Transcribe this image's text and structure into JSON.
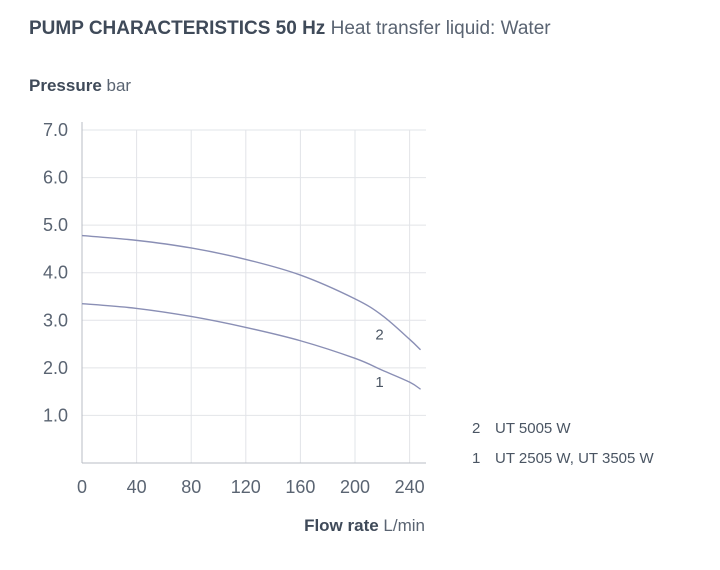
{
  "title": {
    "bold": "PUMP CHARACTERISTICS 50 Hz",
    "light": "Heat transfer liquid: Water"
  },
  "chart_data": {
    "type": "line",
    "ylabel_bold": "Pressure",
    "ylabel_unit": "bar",
    "xlabel_bold": "Flow rate",
    "xlabel_unit": "L/min",
    "xlim": [
      0,
      252
    ],
    "ylim": [
      0,
      7.0
    ],
    "x_ticks": [
      "0",
      "40",
      "80",
      "120",
      "160",
      "200",
      "240"
    ],
    "x_tick_values": [
      0,
      40,
      80,
      120,
      160,
      200,
      240
    ],
    "y_ticks": [
      "1.0",
      "2.0",
      "3.0",
      "4.0",
      "5.0",
      "6.0",
      "7.0"
    ],
    "y_tick_values": [
      1,
      2,
      3,
      4,
      5,
      6,
      7
    ],
    "grid": true,
    "line_color": "#8a8fb5",
    "grid_color": "#e2e4e8",
    "series": [
      {
        "name": "2",
        "x": [
          0,
          40,
          80,
          120,
          160,
          200,
          220,
          240,
          248
        ],
        "y": [
          4.78,
          4.68,
          4.52,
          4.28,
          3.95,
          3.45,
          3.1,
          2.6,
          2.38
        ]
      },
      {
        "name": "1",
        "x": [
          0,
          40,
          80,
          120,
          160,
          200,
          220,
          240,
          248
        ],
        "y": [
          3.35,
          3.25,
          3.08,
          2.85,
          2.57,
          2.2,
          1.95,
          1.7,
          1.55
        ]
      }
    ],
    "curve_labels": [
      "2",
      "1"
    ],
    "curve_label_positions": [
      {
        "x": 218,
        "y": 2.7
      },
      {
        "x": 218,
        "y": 1.7
      }
    ],
    "legend": [
      {
        "num": "2",
        "text": "UT 5005 W"
      },
      {
        "num": "1",
        "text": "UT 2505 W, UT 3505 W"
      }
    ]
  }
}
